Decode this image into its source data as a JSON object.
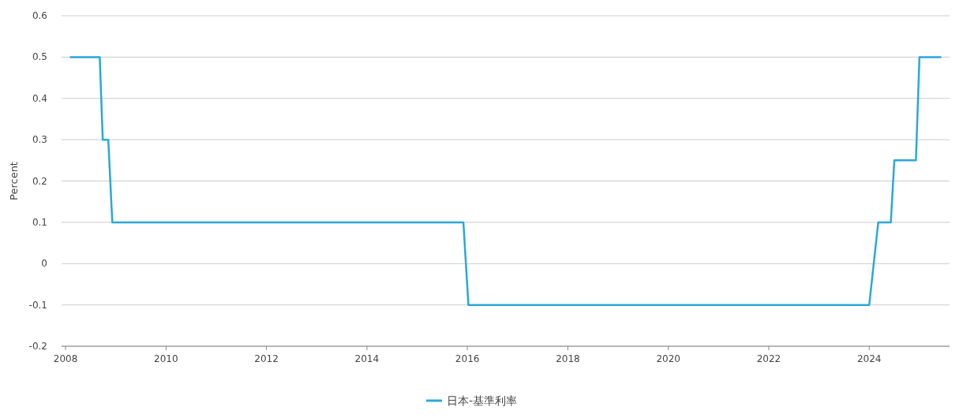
{
  "chart_data": {
    "type": "line",
    "ylabel": "Percent",
    "xlim": [
      2007.92,
      2025.6
    ],
    "xticks": [
      2008,
      2010,
      2012,
      2014,
      2016,
      2018,
      2020,
      2022,
      2024
    ],
    "ylim": [
      -0.2,
      0.6
    ],
    "yticks": [
      -0.2,
      -0.1,
      0,
      0.1,
      0.2,
      0.3,
      0.4,
      0.5,
      0.6
    ],
    "grid": "y",
    "legend": "bottom",
    "marker": "none",
    "line_style": "solid",
    "x": [
      2008.1,
      2008.68,
      2008.74,
      2008.85,
      2008.93,
      2015.92,
      2016.02,
      2024.0,
      2024.18,
      2024.43,
      2024.5,
      2024.93,
      2025.0,
      2025.42
    ],
    "series": [
      {
        "name": "日本-基準利率",
        "color": "#2aa8d8",
        "values": [
          0.5,
          0.5,
          0.3,
          0.3,
          0.1,
          0.1,
          -0.1,
          -0.1,
          0.1,
          0.1,
          0.25,
          0.25,
          0.5,
          0.5
        ]
      }
    ]
  }
}
